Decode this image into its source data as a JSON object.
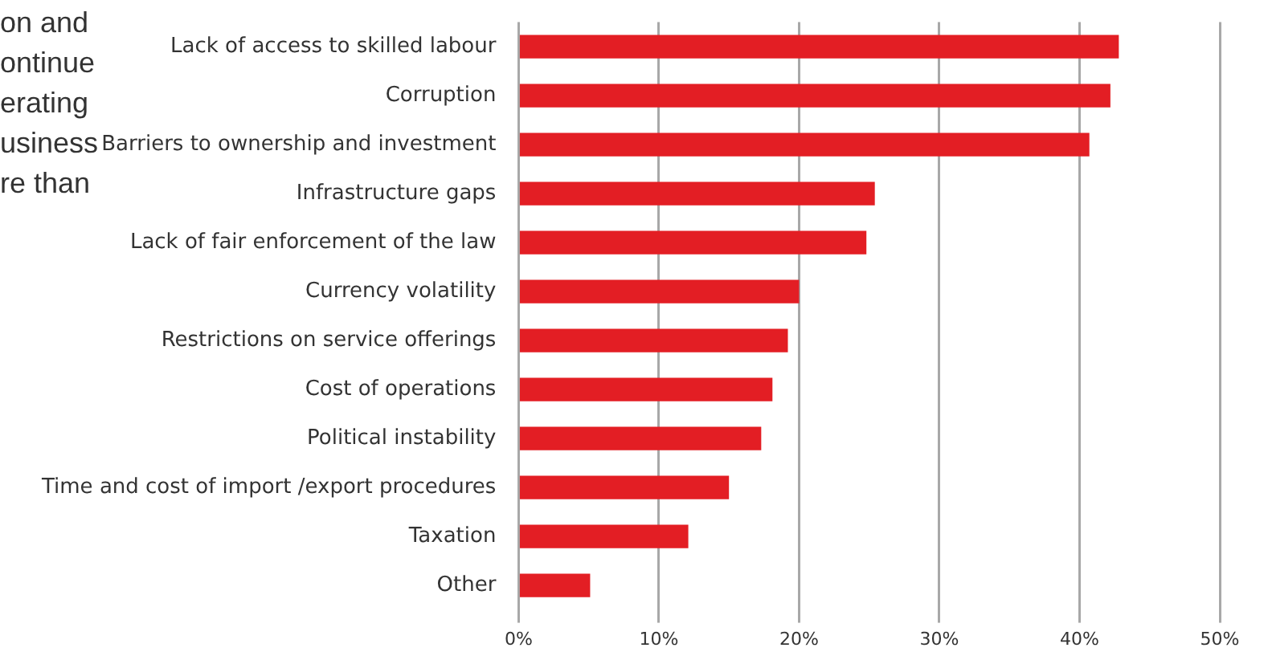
{
  "chart_data": {
    "type": "bar",
    "orientation": "horizontal",
    "annotations": [
      "on and\nontinue\nerating\nusiness\nre than"
    ],
    "categories": [
      "Lack of access to skilled labour",
      "Corruption",
      "Barriers to ownership and investment",
      "Infrastructure gaps",
      "Lack of fair enforcement of the law",
      "Currency volatility",
      "Restrictions on service offerings",
      "Cost of operations",
      "Political instability",
      "Time and cost of import /export procedures",
      "Taxation",
      "Other"
    ],
    "values": [
      42.8,
      42.2,
      40.7,
      25.4,
      24.8,
      20.0,
      19.2,
      18.1,
      17.3,
      15.0,
      12.1,
      5.1
    ],
    "color": "#e31e24",
    "xlim": [
      0,
      50
    ],
    "xticks": [
      {
        "value": 0,
        "label": "0%"
      },
      {
        "value": 10,
        "label": "10%"
      },
      {
        "value": 20,
        "label": "20%"
      },
      {
        "value": 30,
        "label": "30%"
      },
      {
        "value": 40,
        "label": "40%"
      },
      {
        "value": 50,
        "label": "50%"
      }
    ],
    "grid": "x",
    "legend": false
  }
}
